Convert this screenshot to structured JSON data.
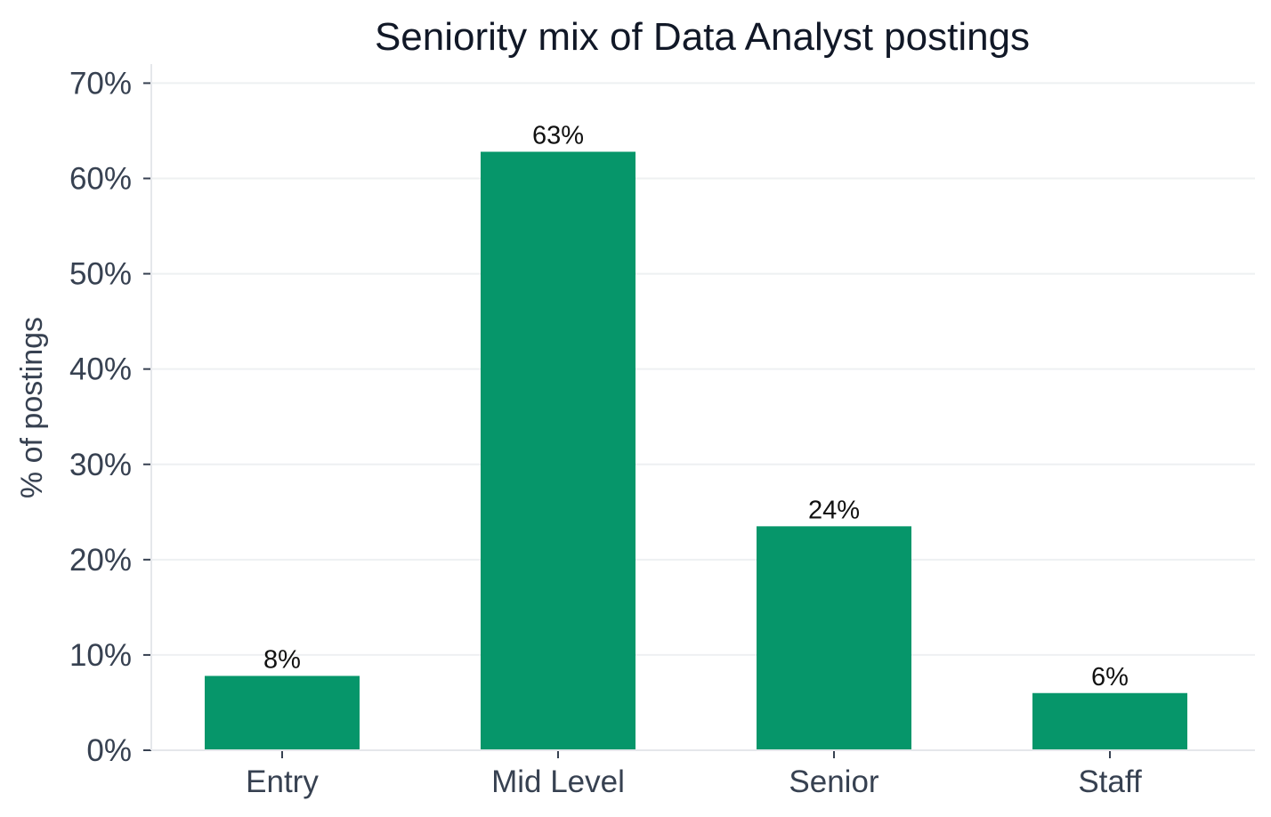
{
  "chart_data": {
    "type": "bar",
    "title": "Seniority mix of Data Analyst postings",
    "xlabel": "",
    "ylabel": "% of postings",
    "categories": [
      "Entry",
      "Mid Level",
      "Senior",
      "Staff"
    ],
    "values": [
      7.8,
      62.8,
      23.5,
      6.0
    ],
    "data_labels": [
      "8%",
      "63%",
      "24%",
      "6%"
    ],
    "ylim": [
      0,
      72
    ],
    "yticks": [
      0,
      10,
      20,
      30,
      40,
      50,
      60,
      70
    ],
    "ytick_labels": [
      "0%",
      "10%",
      "20%",
      "30%",
      "40%",
      "50%",
      "60%",
      "70%"
    ],
    "grid": "horizontal",
    "legend": "none",
    "colors": {
      "bar": "#06966a",
      "grid": "#eef0f2",
      "axis": "#e5e7eb",
      "text": "#374151",
      "title": "#111827"
    }
  }
}
